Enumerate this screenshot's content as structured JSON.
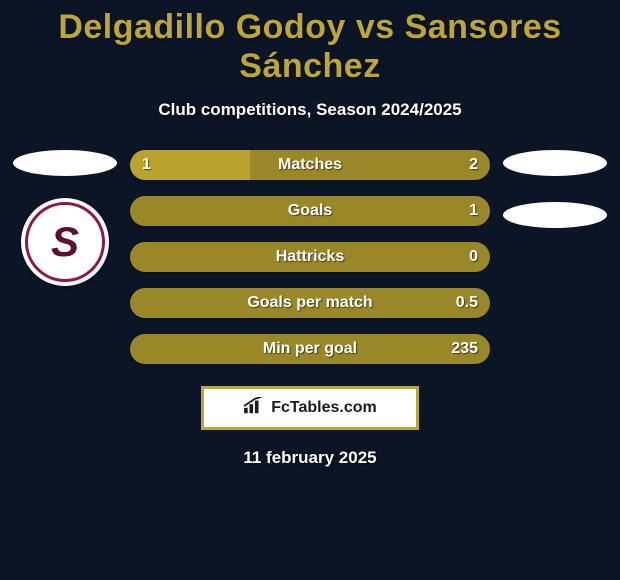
{
  "colors": {
    "background": "#0c1525",
    "title_color": "#bda633",
    "subtitle_color": "#ffffff",
    "bar_label_color": "#ffffff",
    "bar_value_color": "#ffffff",
    "ellipse": "#ffffff",
    "player1_bar": "#baa32f",
    "player2_bar": "#9a8728",
    "brand_border": "#bda633",
    "brand_bg": "#ffffff",
    "brand_text": "#1a1a1a",
    "club_ring": "#8e1942",
    "club_letter": "#5b1031"
  },
  "title": "Delgadillo Godoy vs Sansores Sánchez",
  "subtitle": "Club competitions, Season 2024/2025",
  "date": "11 february 2025",
  "brand": "FcTables.com",
  "stats": [
    {
      "label": "Matches",
      "p1_text": "1",
      "p2_text": "2",
      "p1_pct": 33.3,
      "p2_pct": 66.7
    },
    {
      "label": "Goals",
      "p1_text": "",
      "p2_text": "1",
      "p1_pct": 0,
      "p2_pct": 100
    },
    {
      "label": "Hattricks",
      "p1_text": "",
      "p2_text": "0",
      "p1_pct": 0,
      "p2_pct": 100
    },
    {
      "label": "Goals per match",
      "p1_text": "",
      "p2_text": "0.5",
      "p1_pct": 0,
      "p2_pct": 100
    },
    {
      "label": "Min per goal",
      "p1_text": "",
      "p2_text": "235",
      "p1_pct": 0,
      "p2_pct": 100
    }
  ],
  "club_letter": "S"
}
